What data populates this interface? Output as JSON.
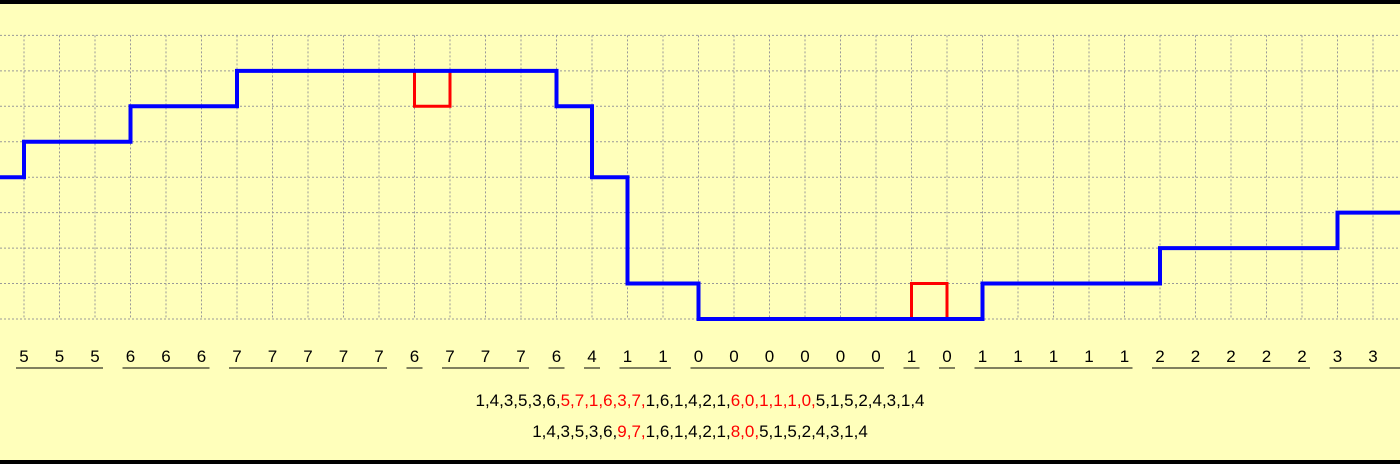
{
  "colors": {
    "background": "#ffffbb",
    "original": "#ff0000",
    "modified": "#0000ff",
    "grid": "#999999"
  },
  "chart_data": {
    "type": "line",
    "step": true,
    "grid": true,
    "ylim": [
      0,
      8
    ],
    "initial_value": 4,
    "series": [
      {
        "color": "#ff0000",
        "values": [
          5,
          5,
          5,
          6,
          6,
          6,
          7,
          7,
          7,
          7,
          7,
          6,
          7,
          7,
          7,
          6,
          4,
          1,
          1,
          0,
          0,
          0,
          0,
          0,
          0,
          1,
          0,
          1,
          1,
          1,
          1,
          1,
          2,
          2,
          2,
          2,
          2,
          3,
          3
        ]
      },
      {
        "color": "#0000ff",
        "values": [
          5,
          5,
          5,
          6,
          6,
          6,
          7,
          7,
          7,
          7,
          7,
          7,
          7,
          7,
          7,
          6,
          4,
          1,
          1,
          0,
          0,
          0,
          0,
          0,
          0,
          0,
          0,
          1,
          1,
          1,
          1,
          1,
          2,
          2,
          2,
          2,
          2,
          3,
          3
        ]
      }
    ],
    "sample_labels": [
      "5",
      "5",
      "5",
      "6",
      "6",
      "6",
      "7",
      "7",
      "7",
      "7",
      "7",
      "6",
      "7",
      "7",
      "7",
      "6",
      "4",
      "1",
      "1",
      "0",
      "0",
      "0",
      "0",
      "0",
      "0",
      "1",
      "0",
      "1",
      "1",
      "1",
      "1",
      "1",
      "2",
      "2",
      "2",
      "2",
      "2",
      "3",
      "3"
    ],
    "groups": [
      [
        0,
        2
      ],
      [
        3,
        5
      ],
      [
        6,
        10
      ],
      [
        11,
        11
      ],
      [
        12,
        14
      ],
      [
        15,
        15
      ],
      [
        16,
        16
      ],
      [
        17,
        18
      ],
      [
        19,
        24
      ],
      [
        25,
        25
      ],
      [
        26,
        26
      ],
      [
        27,
        31
      ],
      [
        32,
        36
      ],
      [
        37,
        38
      ]
    ]
  },
  "sequences": [
    [
      {
        "text": "1,4,3,5,3,6,",
        "red": false
      },
      {
        "text": "5,7,1,6,3,7,",
        "red": true
      },
      {
        "text": "1,6,1,4,2,1,",
        "red": false
      },
      {
        "text": "6,0,1,1,1,0,",
        "red": true
      },
      {
        "text": "5,1,5,2,4,3,1,4",
        "red": false
      }
    ],
    [
      {
        "text": "1,4,3,5,3,6,",
        "red": false
      },
      {
        "text": "9,7,",
        "red": true
      },
      {
        "text": "1,6,1,4,2,1,",
        "red": false
      },
      {
        "text": "8,0,",
        "red": true
      },
      {
        "text": "5,1,5,2,4,3,1,4",
        "red": false
      }
    ]
  ]
}
